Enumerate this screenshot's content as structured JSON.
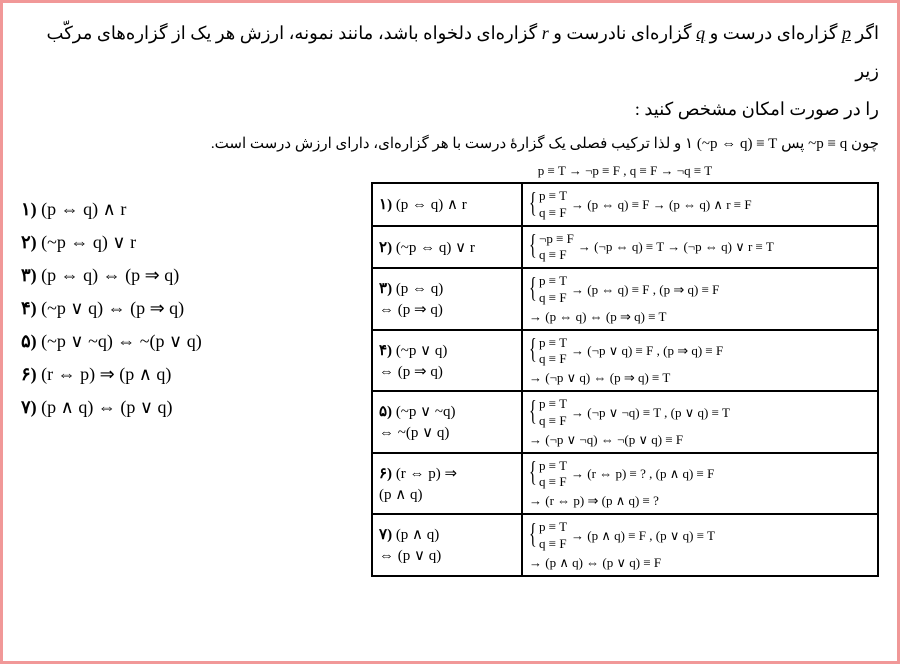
{
  "question": {
    "line1_a": "اگر ",
    "p": "p",
    "line1_b": " گزاره‌ای درست و ",
    "q": "q",
    "line1_c": " گزاره‌ای نادرست و ",
    "r": "r",
    "line1_d": " گزاره‌ای دلخواه باشد، مانند نمونه، ارزش هر یک از گزاره‌های مرکّب زیر",
    "line2": "را در صورت امکان مشخص کنید :"
  },
  "answer_intro": {
    "a": "چون ",
    "f1": "~p ≡ q",
    "b": " پس ",
    "f2": "(~p ⇔ q) ≡ T",
    "c": "١ و لذا ترکیب فصلی یک گزارهٔ درست با هر گزاره‌ای، دارای ارزش درست است."
  },
  "left_list": [
    {
      "n": "١)",
      "f": "(p ⇔ q) ∧ r"
    },
    {
      "n": "٢)",
      "f": "(~p ⇔ q) ∨ r"
    },
    {
      "n": "٣)",
      "f": "(p ⇔ q) ⇔ (p ⇒ q)"
    },
    {
      "n": "۴)",
      "f": "(~p ∨ q) ⇔ (p ⇒ q)"
    },
    {
      "n": "۵)",
      "f": "(~p ∨ ~q) ⇔ ~(p ∨ q)"
    },
    {
      "n": "۶)",
      "f": "(r ⇔ p) ⇒ (p ∧ q)"
    },
    {
      "n": "٧)",
      "f": "(p ∧ q) ⇔ (p ∨ q)"
    }
  ],
  "top_id": "p ≡ T → ¬p ≡ F  ,  q ≡ F → ¬q ≡ T",
  "rows": [
    {
      "n": "١)",
      "lhs": "(p ⇔ q) ∧ r",
      "sub": "",
      "b1": "p ≡ T",
      "b2": "q ≡ F",
      "r1": "→ (p ⇔ q) ≡ F → (p ⇔ q) ∧ r ≡ F",
      "r2": ""
    },
    {
      "n": "٢)",
      "lhs": "(~p ⇔ q) ∨ r",
      "sub": "",
      "b1": "¬p ≡ F",
      "b2": "q ≡ F",
      "r1": "→ (¬p ⇔ q) ≡ T → (¬p ⇔ q) ∨ r ≡ T",
      "r2": ""
    },
    {
      "n": "٣)",
      "lhs": "(p ⇔ q)",
      "sub": "⇔ (p ⇒ q)",
      "b1": "p ≡ T",
      "b2": "q ≡ F",
      "r1": "→ (p ⇔ q) ≡ F , (p ⇒ q) ≡ F",
      "r2": "→ (p ⇔ q) ⇔ (p ⇒ q) ≡ T"
    },
    {
      "n": "۴)",
      "lhs": "(~p ∨ q)",
      "sub": "⇔ (p ⇒ q)",
      "b1": "p ≡ T",
      "b2": "q ≡ F",
      "r1": "→ (¬p ∨ q) ≡ F , (p ⇒ q) ≡ F",
      "r2": "→ (¬p ∨ q) ⇔ (p ⇒ q) ≡ T"
    },
    {
      "n": "۵)",
      "lhs": "(~p ∨ ~q)",
      "sub": "⇔ ~(p ∨ q)",
      "b1": "p ≡ T",
      "b2": "q ≡ F",
      "r1": "→ (¬p ∨ ¬q) ≡ T , (p ∨ q) ≡ T",
      "r2": "→ (¬p ∨ ¬q) ⇔ ¬(p ∨ q) ≡ F"
    },
    {
      "n": "۶)",
      "lhs": "(r ⇔ p) ⇒",
      "sub": "(p ∧ q)",
      "b1": "p ≡ T",
      "b2": "q ≡ F",
      "r1": "→ (r ⇔ p) ≡ ? , (p ∧ q) ≡ F",
      "r2": "→ (r ⇔ p) ⇒ (p ∧ q) ≡ ?"
    },
    {
      "n": "٧)",
      "lhs": "(p ∧ q)",
      "sub": "⇔ (p ∨ q)",
      "b1": "p ≡ T",
      "b2": "q ≡ F",
      "r1": "→ (p ∧ q) ≡ F , (p ∨ q) ≡ T",
      "r2": "→ (p ∧ q) ⇔ (p ∨ q) ≡ F"
    }
  ]
}
